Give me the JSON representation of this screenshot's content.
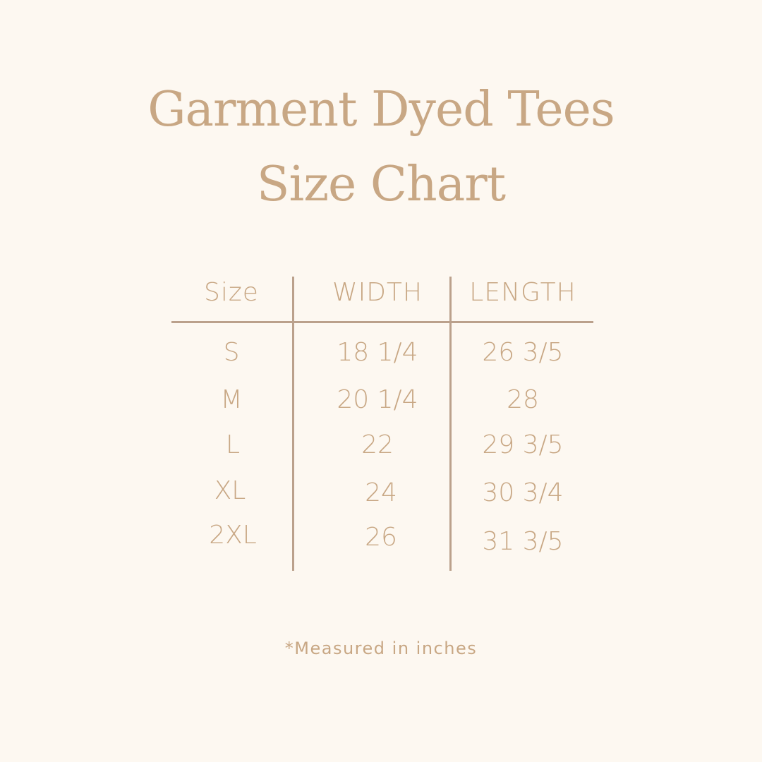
{
  "title": {
    "line1": "Garment Dyed Tees",
    "line2": "Size Chart"
  },
  "table": {
    "headers": [
      "Size",
      "WIDTH",
      "LENGTH"
    ],
    "rows": [
      [
        "S",
        "18 1/4",
        "26 3/5"
      ],
      [
        "M",
        "20 1/4",
        "28"
      ],
      [
        "L",
        "22",
        "29 3/5"
      ],
      [
        "XL",
        "24",
        "30 3/4"
      ],
      [
        "2XL",
        "26",
        "31 3/5"
      ]
    ]
  },
  "footnote": "*Measured in inches",
  "colors": {
    "background": "#fdf8f1",
    "text": "#c8a784",
    "lines": "#bba18c"
  }
}
